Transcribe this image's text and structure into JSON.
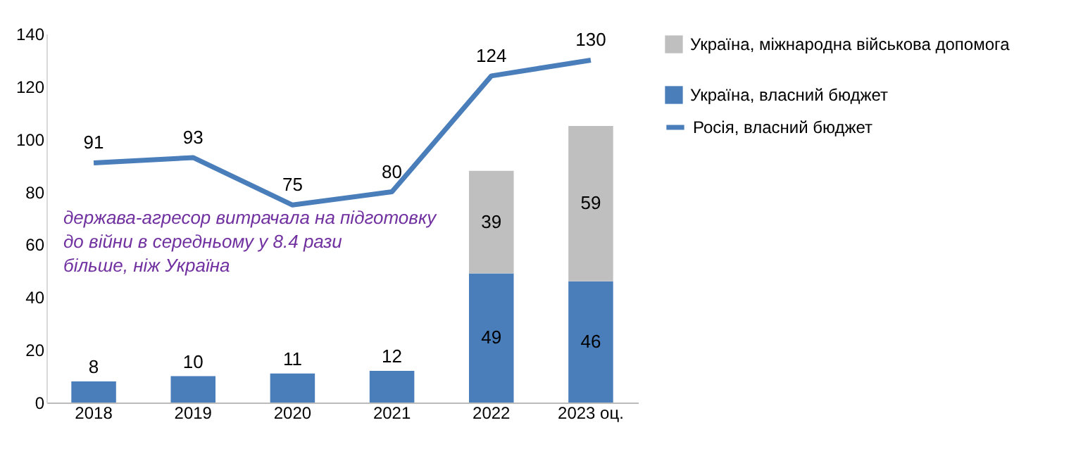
{
  "chart_data": {
    "type": "bar",
    "stacked": true,
    "categories": [
      "2018",
      "2019",
      "2020",
      "2021",
      "2022",
      "2023 оц."
    ],
    "series": [
      {
        "name": "Україна, власний бюджет",
        "color": "#4a7ebb",
        "values": [
          8,
          10,
          11,
          12,
          49,
          46
        ]
      },
      {
        "name": "Україна, міжнародна військова допомога",
        "color": "#bfbfbf",
        "values": [
          null,
          null,
          null,
          null,
          39,
          59
        ]
      },
      {
        "name": "Росія, власний бюджет",
        "type": "line",
        "color": "#4a7ebb",
        "values": [
          91,
          93,
          75,
          80,
          124,
          130
        ]
      }
    ],
    "ylim": [
      0,
      140
    ],
    "yticks": [
      0,
      20,
      40,
      60,
      80,
      100,
      120,
      140
    ],
    "data_labels": true,
    "legend": "right",
    "grid": false,
    "marker": "none",
    "annotations": [
      "держава-агресор витрачала на підготовку до війни в середньому у  8.4  рази більше, ніж Україна"
    ]
  }
}
